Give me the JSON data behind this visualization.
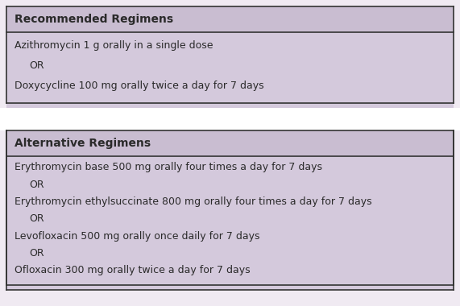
{
  "fig_bg_color": "#f0eaf2",
  "table_bg_color": "#d4c9dc",
  "header_bg_color": "#c9bdd1",
  "white_gap_color": "#ffffff",
  "border_color": "#333333",
  "text_color": "#2a2a2a",
  "section1_header": "Recommended Regimens",
  "section1_lines": [
    "Azithromycin 1 g orally in a single dose",
    "    OR",
    "Doxycycline 100 mg orally twice a day for 7 days"
  ],
  "section2_header": "Alternative Regimens",
  "section2_lines": [
    "Erythromycin base 500 mg orally four times a day for 7 days",
    "    OR",
    "Erythromycin ethylsuccinate 800 mg orally four times a day for 7 days",
    "    OR",
    "Levofloxacin 500 mg orally once daily for 7 days",
    "    OR",
    "Ofloxacin 300 mg orally twice a day for 7 days"
  ],
  "header_fontsize": 10,
  "body_fontsize": 9,
  "figsize": [
    5.71,
    3.8
  ],
  "dpi": 100
}
